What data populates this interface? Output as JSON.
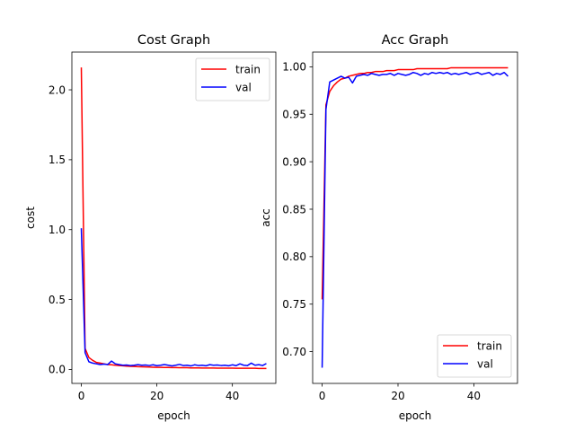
{
  "chart_data": [
    {
      "type": "line",
      "title": "Cost Graph",
      "xlabel": "epoch",
      "ylabel": "cost",
      "xlim": [
        -2.5,
        51.5
      ],
      "ylim": [
        -0.1,
        2.27
      ],
      "xticks": [
        0,
        20,
        40
      ],
      "xtick_labels": [
        "0",
        "20",
        "40"
      ],
      "yticks": [
        0.0,
        0.5,
        1.0,
        1.5,
        2.0
      ],
      "ytick_labels": [
        "0.0",
        "0.5",
        "1.0",
        "1.5",
        "2.0"
      ],
      "legend": "top-right",
      "grid": false,
      "x": [
        0,
        1,
        2,
        3,
        4,
        5,
        6,
        7,
        8,
        9,
        10,
        11,
        12,
        13,
        14,
        15,
        16,
        17,
        18,
        19,
        20,
        21,
        22,
        23,
        24,
        25,
        26,
        27,
        28,
        29,
        30,
        31,
        32,
        33,
        34,
        35,
        36,
        37,
        38,
        39,
        40,
        41,
        42,
        43,
        44,
        45,
        46,
        47,
        48,
        49
      ],
      "series": [
        {
          "name": "train",
          "color": "#ff0000",
          "values": [
            2.16,
            0.15,
            0.085,
            0.065,
            0.05,
            0.045,
            0.04,
            0.035,
            0.033,
            0.03,
            0.028,
            0.026,
            0.024,
            0.022,
            0.021,
            0.02,
            0.019,
            0.018,
            0.017,
            0.016,
            0.015,
            0.015,
            0.014,
            0.014,
            0.013,
            0.013,
            0.012,
            0.012,
            0.012,
            0.011,
            0.011,
            0.011,
            0.01,
            0.01,
            0.01,
            0.01,
            0.009,
            0.009,
            0.009,
            0.009,
            0.009,
            0.008,
            0.008,
            0.008,
            0.008,
            0.008,
            0.008,
            0.007,
            0.007,
            0.007
          ]
        },
        {
          "name": "val",
          "color": "#0000ff",
          "values": [
            1.01,
            0.12,
            0.055,
            0.045,
            0.04,
            0.035,
            0.038,
            0.035,
            0.06,
            0.04,
            0.035,
            0.03,
            0.032,
            0.028,
            0.03,
            0.034,
            0.03,
            0.032,
            0.028,
            0.033,
            0.027,
            0.03,
            0.035,
            0.03,
            0.025,
            0.03,
            0.036,
            0.028,
            0.03,
            0.025,
            0.033,
            0.028,
            0.03,
            0.026,
            0.034,
            0.03,
            0.032,
            0.028,
            0.03,
            0.026,
            0.033,
            0.027,
            0.04,
            0.03,
            0.028,
            0.045,
            0.03,
            0.034,
            0.028,
            0.042
          ]
        }
      ]
    },
    {
      "type": "line",
      "title": "Acc Graph",
      "xlabel": "epoch",
      "ylabel": "acc",
      "xlim": [
        -2.5,
        51.5
      ],
      "ylim": [
        0.6665,
        1.0155
      ],
      "xticks": [
        0,
        20,
        40
      ],
      "xtick_labels": [
        "0",
        "20",
        "40"
      ],
      "yticks": [
        0.7,
        0.75,
        0.8,
        0.85,
        0.9,
        0.95,
        1.0
      ],
      "ytick_labels": [
        "0.70",
        "0.75",
        "0.80",
        "0.85",
        "0.90",
        "0.95",
        "1.00"
      ],
      "legend": "bottom-right",
      "grid": false,
      "x": [
        0,
        1,
        2,
        3,
        4,
        5,
        6,
        7,
        8,
        9,
        10,
        11,
        12,
        13,
        14,
        15,
        16,
        17,
        18,
        19,
        20,
        21,
        22,
        23,
        24,
        25,
        26,
        27,
        28,
        29,
        30,
        31,
        32,
        33,
        34,
        35,
        36,
        37,
        38,
        39,
        40,
        41,
        42,
        43,
        44,
        45,
        46,
        47,
        48,
        49
      ],
      "series": [
        {
          "name": "train",
          "color": "#ff0000",
          "values": [
            0.755,
            0.96,
            0.974,
            0.98,
            0.984,
            0.987,
            0.988,
            0.99,
            0.991,
            0.992,
            0.993,
            0.993,
            0.994,
            0.994,
            0.995,
            0.995,
            0.995,
            0.996,
            0.996,
            0.996,
            0.997,
            0.997,
            0.997,
            0.997,
            0.997,
            0.998,
            0.998,
            0.998,
            0.998,
            0.998,
            0.998,
            0.998,
            0.998,
            0.998,
            0.999,
            0.999,
            0.999,
            0.999,
            0.999,
            0.999,
            0.999,
            0.999,
            0.999,
            0.999,
            0.999,
            0.999,
            0.999,
            0.999,
            0.999,
            0.999
          ]
        },
        {
          "name": "val",
          "color": "#0000ff",
          "values": [
            0.683,
            0.955,
            0.984,
            0.986,
            0.988,
            0.99,
            0.988,
            0.989,
            0.983,
            0.99,
            0.991,
            0.992,
            0.991,
            0.993,
            0.992,
            0.991,
            0.992,
            0.992,
            0.993,
            0.991,
            0.993,
            0.992,
            0.991,
            0.992,
            0.994,
            0.993,
            0.991,
            0.993,
            0.992,
            0.994,
            0.993,
            0.994,
            0.993,
            0.994,
            0.992,
            0.993,
            0.992,
            0.993,
            0.994,
            0.992,
            0.993,
            0.994,
            0.992,
            0.993,
            0.994,
            0.991,
            0.993,
            0.992,
            0.994,
            0.99
          ]
        }
      ]
    }
  ]
}
